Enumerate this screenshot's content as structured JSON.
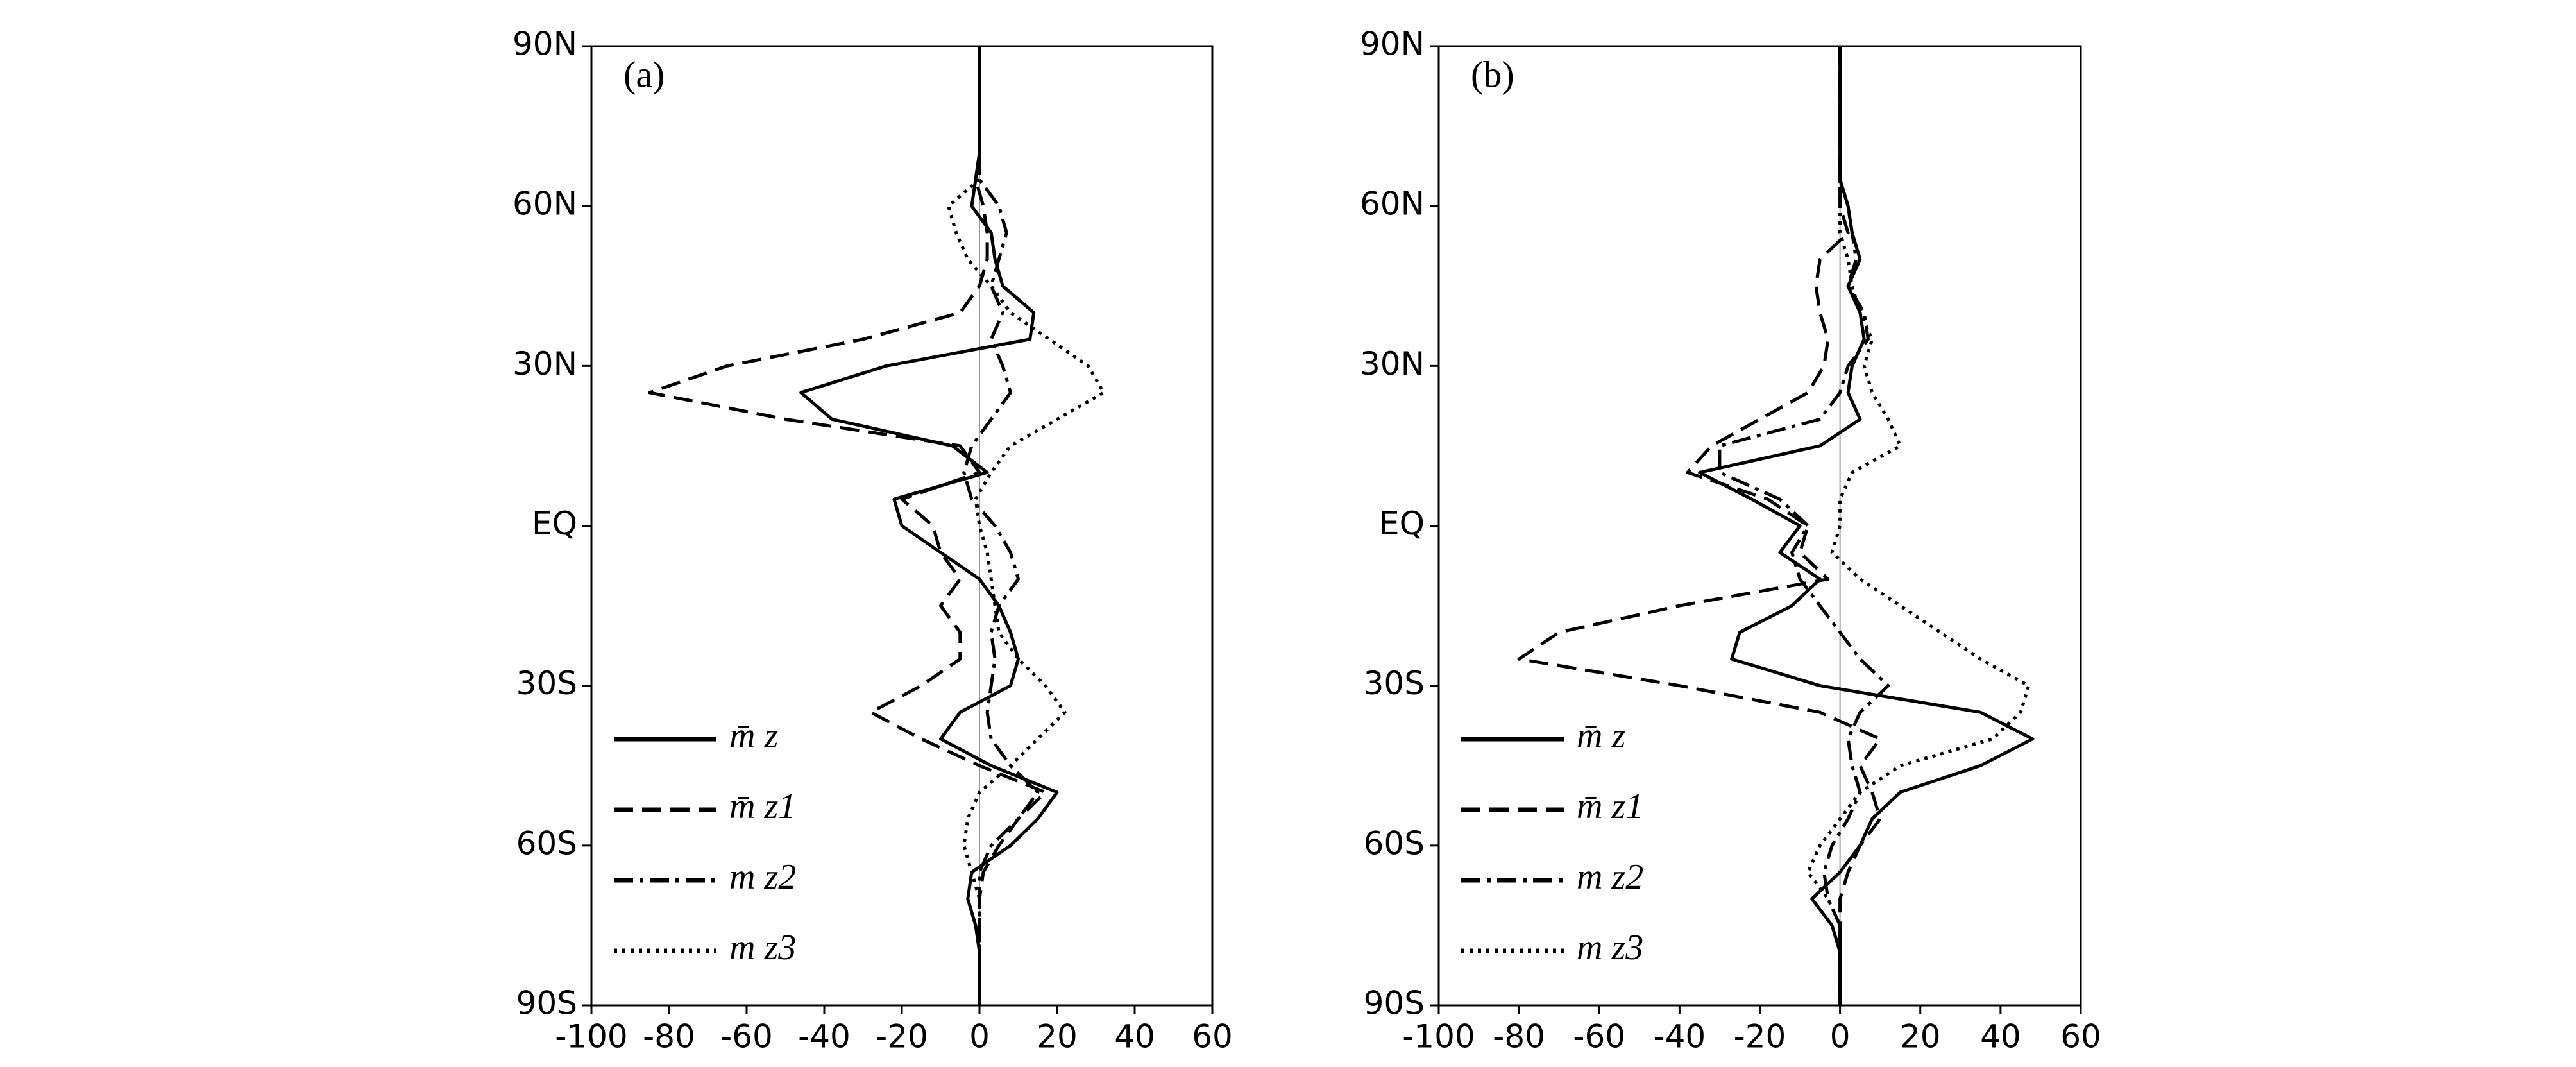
{
  "chart_data": [
    {
      "type": "line",
      "title": "(a)",
      "y": [
        90,
        85,
        80,
        75,
        70,
        65,
        60,
        55,
        50,
        45,
        40,
        35,
        30,
        25,
        20,
        15,
        10,
        5,
        0,
        -5,
        -10,
        -15,
        -20,
        -25,
        -30,
        -35,
        -40,
        -45,
        -50,
        -55,
        -60,
        -65,
        -70,
        -75,
        -80,
        -85,
        -90
      ],
      "series": [
        {
          "name": "m̄ z",
          "color": "#000000",
          "dash": "solid",
          "values": [
            0,
            0,
            0,
            0,
            0,
            -1,
            -2,
            3,
            4,
            6,
            14,
            13,
            -24,
            -46,
            -38,
            -7,
            2,
            -22,
            -20,
            -10,
            0,
            5,
            8,
            10,
            8,
            -5,
            -10,
            3,
            20,
            15,
            8,
            -2,
            -3,
            -1,
            0,
            0,
            0
          ]
        },
        {
          "name": "m̄ z1",
          "color": "#000000",
          "dash": "dashed",
          "values": [
            0,
            0,
            0,
            0,
            0,
            -1,
            1,
            2,
            2,
            0,
            -5,
            -30,
            -65,
            -85,
            -50,
            -5,
            0,
            -20,
            -12,
            -10,
            -5,
            -10,
            -5,
            -5,
            -15,
            -28,
            -15,
            0,
            17,
            10,
            5,
            1,
            0,
            0,
            0,
            0,
            0
          ]
        },
        {
          "name": "m z2",
          "color": "#000000",
          "dash": "dashdot",
          "values": [
            0,
            0,
            0,
            0,
            0,
            0,
            5,
            7,
            5,
            3,
            6,
            3,
            6,
            8,
            3,
            -2,
            -4,
            -2,
            4,
            8,
            10,
            5,
            3,
            4,
            3,
            2,
            3,
            8,
            15,
            10,
            3,
            0,
            0,
            0,
            0,
            0,
            0
          ]
        },
        {
          "name": "m z3",
          "color": "#000000",
          "dash": "dotted",
          "values": [
            0,
            0,
            0,
            0,
            0,
            0,
            -8,
            -6,
            -3,
            3,
            8,
            18,
            28,
            32,
            20,
            8,
            3,
            -1,
            0,
            2,
            3,
            4,
            5,
            10,
            17,
            22,
            15,
            8,
            0,
            -3,
            -4,
            -2,
            0,
            0,
            0,
            0,
            0
          ]
        }
      ],
      "xlim": [
        -100,
        60
      ],
      "xticks": [
        -100,
        -80,
        -60,
        -40,
        -20,
        0,
        20,
        40,
        60
      ],
      "ylim": [
        -90,
        90
      ],
      "yticks": [
        {
          "value": 90,
          "label": "90N"
        },
        {
          "value": 60,
          "label": "60N"
        },
        {
          "value": 30,
          "label": "30N"
        },
        {
          "value": 0,
          "label": "EQ"
        },
        {
          "value": -30,
          "label": "30S"
        },
        {
          "value": -60,
          "label": "60S"
        },
        {
          "value": -90,
          "label": "90S"
        }
      ],
      "legend": "lower left"
    },
    {
      "type": "line",
      "title": "(b)",
      "y": [
        90,
        85,
        80,
        75,
        70,
        65,
        60,
        55,
        50,
        45,
        40,
        35,
        30,
        25,
        20,
        15,
        10,
        5,
        0,
        -5,
        -10,
        -15,
        -20,
        -25,
        -30,
        -35,
        -40,
        -45,
        -50,
        -55,
        -60,
        -65,
        -70,
        -75,
        -80,
        -85,
        -90
      ],
      "series": [
        {
          "name": "m̄ z",
          "color": "#000000",
          "dash": "solid",
          "values": [
            0,
            0,
            0,
            0,
            0,
            0,
            2,
            3,
            5,
            2,
            5,
            6,
            3,
            2,
            5,
            -5,
            -35,
            -22,
            -10,
            -15,
            -5,
            -12,
            -25,
            -27,
            -5,
            35,
            48,
            35,
            15,
            8,
            5,
            0,
            -7,
            -2,
            0,
            0,
            0
          ]
        },
        {
          "name": "m̄ z1",
          "color": "#000000",
          "dash": "dashed",
          "values": [
            0,
            0,
            0,
            0,
            0,
            0,
            0,
            2,
            -5,
            -6,
            -5,
            -3,
            -4,
            -8,
            -20,
            -32,
            -38,
            -18,
            -8,
            -10,
            -3,
            -40,
            -70,
            -80,
            -40,
            -5,
            10,
            5,
            8,
            10,
            5,
            2,
            0,
            0,
            0,
            0,
            0
          ]
        },
        {
          "name": "m z2",
          "color": "#000000",
          "dash": "dashdot",
          "values": [
            0,
            0,
            0,
            0,
            0,
            0,
            2,
            3,
            4,
            2,
            6,
            7,
            2,
            0,
            -5,
            -30,
            -30,
            -15,
            -8,
            -12,
            -10,
            -5,
            0,
            5,
            12,
            5,
            2,
            3,
            5,
            2,
            -2,
            -4,
            -3,
            0,
            0,
            0,
            0
          ]
        },
        {
          "name": "m z3",
          "color": "#000000",
          "dash": "dotted",
          "values": [
            0,
            0,
            0,
            0,
            0,
            0,
            0,
            0,
            2,
            3,
            5,
            8,
            6,
            8,
            12,
            15,
            3,
            0,
            0,
            -2,
            5,
            15,
            25,
            35,
            47,
            45,
            38,
            15,
            5,
            0,
            -5,
            -8,
            -3,
            0,
            0,
            0,
            0
          ]
        }
      ],
      "xlim": [
        -100,
        60
      ],
      "xticks": [
        -100,
        -80,
        -60,
        -40,
        -20,
        0,
        20,
        40,
        60
      ],
      "ylim": [
        -90,
        90
      ],
      "yticks": [
        {
          "value": 90,
          "label": "90N"
        },
        {
          "value": 60,
          "label": "60N"
        },
        {
          "value": 30,
          "label": "30N"
        },
        {
          "value": 0,
          "label": "EQ"
        },
        {
          "value": -30,
          "label": "30S"
        },
        {
          "value": -60,
          "label": "60S"
        },
        {
          "value": -90,
          "label": "90S"
        }
      ],
      "legend": "lower left"
    }
  ]
}
